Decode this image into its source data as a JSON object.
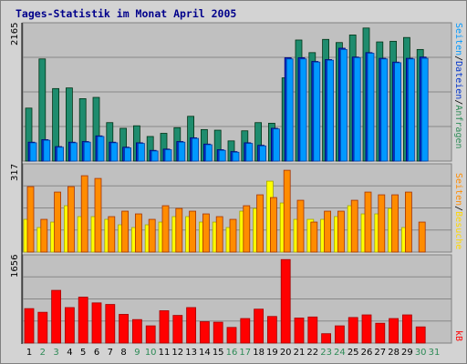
{
  "chart_data": [
    {
      "type": "bar",
      "title": "Tages-Statistik im Monat April 2005",
      "categories": [
        "1",
        "2",
        "3",
        "4",
        "5",
        "6",
        "7",
        "8",
        "9",
        "10",
        "11",
        "12",
        "13",
        "14",
        "15",
        "16",
        "17",
        "18",
        "19",
        "20",
        "21",
        "22",
        "23",
        "24",
        "25",
        "26",
        "27",
        "28",
        "29",
        "30",
        "31"
      ],
      "weekend_color": "#2e8b57",
      "weekday_color": "#000000",
      "weekend_days": [
        "2",
        "3",
        "9",
        "10",
        "16",
        "17",
        "23",
        "24",
        "30",
        "31"
      ],
      "ylim": [
        0,
        2165
      ],
      "ymax_label": "2165",
      "grid": true,
      "series": [
        {
          "name": "Anfragen",
          "color": "#1e8c6e",
          "values": [
            840,
            1620,
            1150,
            1160,
            990,
            1010,
            610,
            520,
            560,
            390,
            440,
            530,
            710,
            500,
            490,
            320,
            480,
            610,
            600,
            1320,
            1920,
            1720,
            1930,
            1880,
            2000,
            2110,
            1890,
            1900,
            1960,
            1770,
            0
          ]
        },
        {
          "name": "Dateien",
          "color": "#0033cc",
          "values": [
            300,
            340,
            230,
            300,
            310,
            400,
            300,
            220,
            290,
            170,
            190,
            310,
            370,
            270,
            180,
            150,
            290,
            250,
            520,
            1640,
            1640,
            1580,
            1610,
            1790,
            1650,
            1720,
            1630,
            1570,
            1630,
            1650,
            0
          ]
        },
        {
          "name": "Seiten",
          "color": "#0099ff",
          "values": [
            290,
            330,
            220,
            290,
            300,
            390,
            290,
            210,
            280,
            160,
            180,
            300,
            360,
            260,
            170,
            140,
            280,
            240,
            510,
            1620,
            1620,
            1570,
            1600,
            1770,
            1640,
            1710,
            1620,
            1560,
            1620,
            1630,
            0
          ]
        }
      ],
      "right_label": [
        "Seiten",
        "Dateien",
        "Anfragen"
      ]
    },
    {
      "type": "bar",
      "categories": [
        "1",
        "2",
        "3",
        "4",
        "5",
        "6",
        "7",
        "8",
        "9",
        "10",
        "11",
        "12",
        "13",
        "14",
        "15",
        "16",
        "17",
        "18",
        "19",
        "20",
        "21",
        "22",
        "23",
        "24",
        "25",
        "26",
        "27",
        "28",
        "29",
        "30",
        "31"
      ],
      "ylim": [
        0,
        317
      ],
      "ymax_label": "317",
      "grid": true,
      "series": [
        {
          "name": "Besuche",
          "color": "#ffff00",
          "values": [
            120,
            90,
            110,
            170,
            130,
            130,
            120,
            100,
            90,
            100,
            110,
            130,
            130,
            110,
            110,
            90,
            150,
            160,
            260,
            180,
            120,
            120,
            120,
            130,
            170,
            140,
            140,
            160,
            90,
            0,
            0
          ]
        },
        {
          "name": "Seiten",
          "color": "#ff8c00",
          "values": [
            240,
            120,
            220,
            240,
            280,
            270,
            130,
            150,
            140,
            120,
            170,
            160,
            150,
            140,
            130,
            120,
            170,
            210,
            200,
            300,
            190,
            110,
            150,
            150,
            190,
            220,
            210,
            210,
            220,
            110,
            0
          ]
        }
      ],
      "right_label": [
        "Seiten",
        "Besuche"
      ]
    },
    {
      "type": "bar",
      "categories": [
        "1",
        "2",
        "3",
        "4",
        "5",
        "6",
        "7",
        "8",
        "9",
        "10",
        "11",
        "12",
        "13",
        "14",
        "15",
        "16",
        "17",
        "18",
        "19",
        "20",
        "21",
        "22",
        "23",
        "24",
        "25",
        "26",
        "27",
        "28",
        "29",
        "30",
        "31"
      ],
      "ylim": [
        0,
        1656
      ],
      "ymax_label": "1656",
      "grid": true,
      "series": [
        {
          "name": "kB",
          "color": "#ff0000",
          "values": [
            660,
            590,
            1010,
            680,
            880,
            770,
            740,
            550,
            450,
            330,
            620,
            530,
            680,
            410,
            400,
            300,
            470,
            650,
            510,
            1600,
            480,
            500,
            180,
            330,
            490,
            540,
            380,
            470,
            540,
            310,
            0
          ]
        }
      ],
      "right_label": [
        "kB"
      ]
    }
  ]
}
